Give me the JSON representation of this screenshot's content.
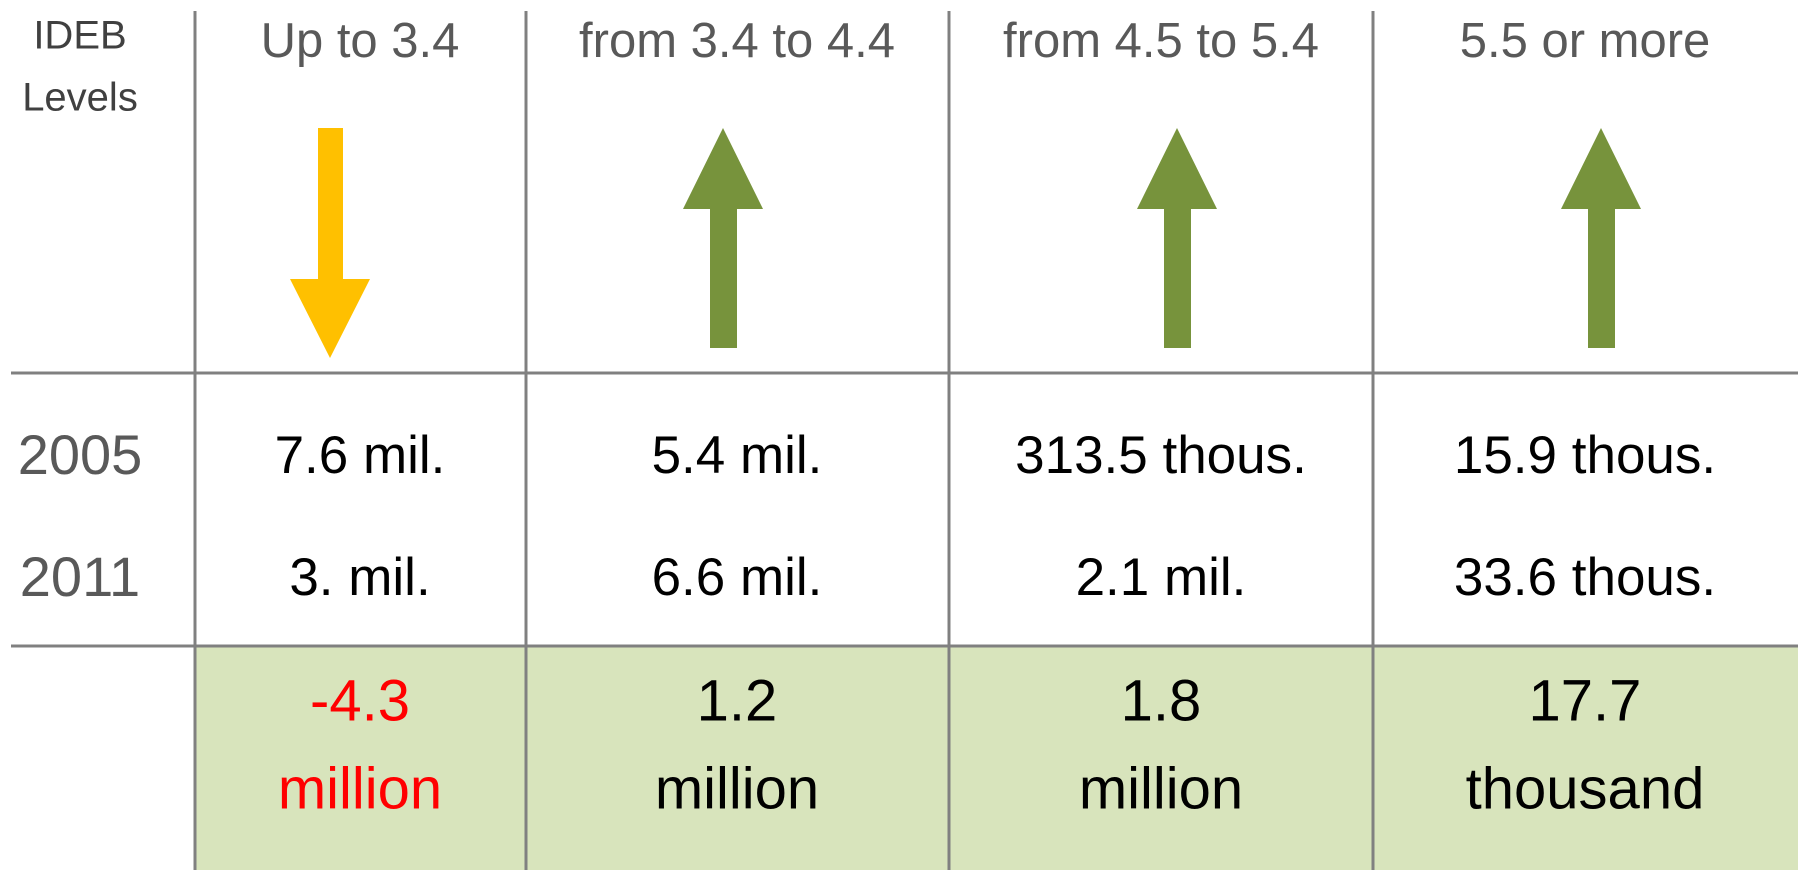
{
  "table": {
    "corner": [
      "IDEB",
      "Levels"
    ],
    "columns": [
      "Up to 3.4",
      "from 3.4 to 4.4",
      "from 4.5 to 5.4",
      "5.5 or more"
    ],
    "years": [
      "2005",
      "2011"
    ],
    "rows": [
      [
        "7.6 mil.",
        "5.4 mil.",
        "313.5 thous.",
        "15.9 thous."
      ],
      [
        "3. mil.",
        "6.6 mil.",
        "2.1 mil.",
        "33.6 thous."
      ]
    ],
    "change": [
      {
        "value": "-4.3",
        "unit": "million"
      },
      {
        "value": "1.2",
        "unit": "million"
      },
      {
        "value": "1.8",
        "unit": "million"
      },
      {
        "value": "17.7",
        "unit": "thousand"
      }
    ]
  }
}
